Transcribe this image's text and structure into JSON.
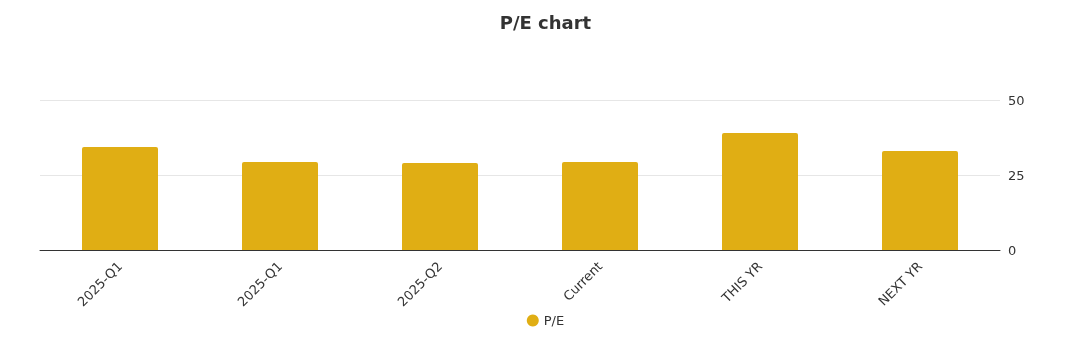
{
  "chart_data": {
    "type": "bar",
    "title": "P/E chart",
    "categories": [
      "2025-Q1",
      "2025-Q1",
      "2025-Q2",
      "Current",
      "THIS YR",
      "NEXT YR"
    ],
    "series": [
      {
        "name": "P/E",
        "color": "#e0ae14",
        "values": [
          34.3,
          29.3,
          29,
          29.3,
          39,
          33
        ]
      }
    ],
    "ylim": [
      0,
      50
    ],
    "yticks": [
      0,
      25,
      50
    ],
    "grid": "y",
    "legend": "bottom"
  }
}
